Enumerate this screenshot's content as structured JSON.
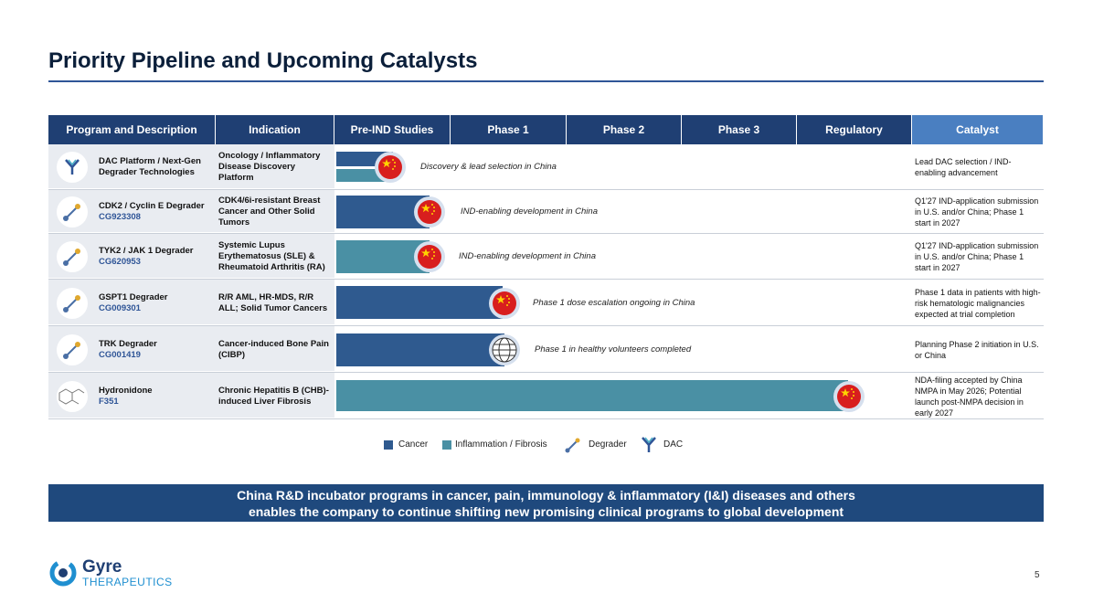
{
  "header": {
    "title": "Priority Pipeline and Upcoming Catalysts"
  },
  "table": {
    "columns": [
      "Program and Description",
      "Indication",
      "Pre-IND Studies",
      "Phase 1",
      "Phase 2",
      "Phase 3",
      "Regulatory",
      "Catalyst"
    ],
    "rows": [
      {
        "program": "DAC Platform / Next-Gen Degrader Technologies",
        "code": null,
        "indication": "Oncology / Inflammatory Disease Discovery Platform",
        "status": "Discovery & lead selection in China",
        "catalyst": "Lead DAC selection / IND-enabling advancement"
      },
      {
        "program": "CDK2 / Cyclin E Degrader",
        "code": "CG923308",
        "indication": "CDK4/6i-resistant Breast Cancer and Other Solid Tumors",
        "status": "IND-enabling development in China",
        "catalyst": "Q1'27 IND-application submission in U.S. and/or China; Phase 1 start in 2027"
      },
      {
        "program": "TYK2 / JAK 1 Degrader",
        "code": "CG620953",
        "indication": "Systemic Lupus Erythematosus (SLE) & Rheumatoid Arthritis (RA)",
        "status": "IND-enabling development in China",
        "catalyst": "Q1'27 IND-application submission in U.S. and/or China; Phase 1 start in 2027"
      },
      {
        "program": "GSPT1 Degrader",
        "code": "CG009301",
        "indication": "R/R AML, HR-MDS, R/R ALL; Solid Tumor Cancers",
        "status": "Phase 1 dose escalation ongoing in China",
        "catalyst": "Phase 1 data in patients with high-risk hematologic malignancies expected at trial completion"
      },
      {
        "program": "TRK Degrader",
        "code": "CG001419",
        "indication": "Cancer-induced Bone Pain (CIBP)",
        "status": "Phase 1 in healthy volunteers completed",
        "catalyst": "Planning Phase 2 initiation in U.S. or China"
      },
      {
        "program": "Hydronidone",
        "code": "F351",
        "indication": "Chronic Hepatitis B (CHB)-induced Liver Fibrosis",
        "status": null,
        "catalyst": "NDA-filing accepted by China NMPA in May 2026; Potential launch post-NMPA decision in early 2027"
      }
    ]
  },
  "legend": [
    "Cancer",
    "Inflammation / Fibrosis",
    "Degrader",
    "DAC"
  ],
  "banner": [
    "China R&D incubator programs in cancer, pain, immunology & inflammatory (I&I) diseases and others",
    "enables the  company to continue shifting new promising clinical programs to global development"
  ],
  "footer": {
    "logo_name": "Gyre",
    "logo_sub": "THERAPEUTICS",
    "page": "5"
  }
}
